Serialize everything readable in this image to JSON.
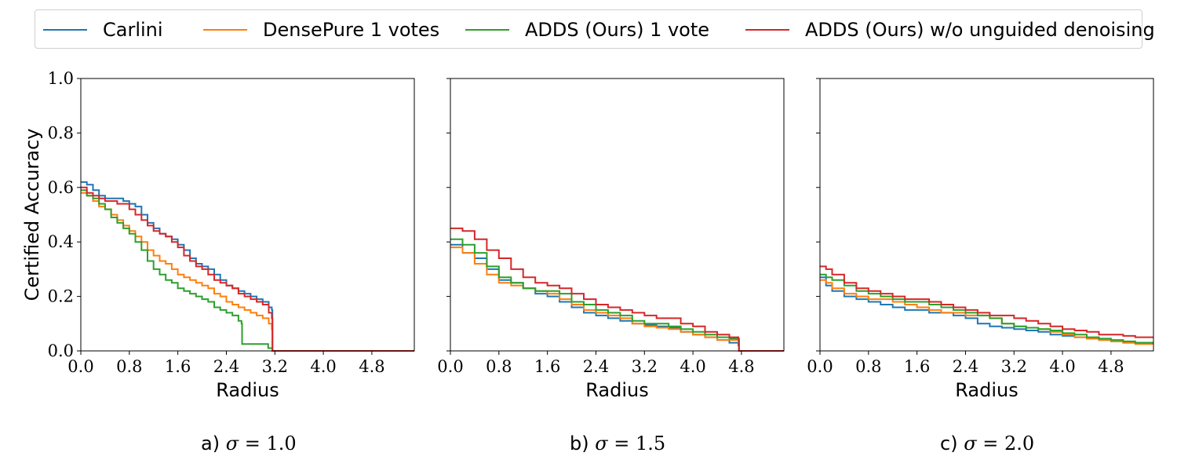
{
  "colors": {
    "carlini": "#1f77b4",
    "densepure": "#ff7f0e",
    "adds": "#2ca02c",
    "adds_wo": "#d62728"
  },
  "legend": {
    "placement": "top-center",
    "items": [
      {
        "label": "Carlini",
        "color": "#1f77b4"
      },
      {
        "label": "DensePure 1 votes",
        "color": "#ff7f0e"
      },
      {
        "label": "ADDS (Ours) 1 vote",
        "color": "#2ca02c"
      },
      {
        "label": "ADDS (Ours) w/o unguided denoising",
        "color": "#d62728"
      }
    ]
  },
  "captions": [
    {
      "prefix": "a)",
      "symbol": "σ",
      "eq": "=",
      "value": "1.0"
    },
    {
      "prefix": "b)",
      "symbol": "σ",
      "eq": "=",
      "value": "1.5"
    },
    {
      "prefix": "c)",
      "symbol": "σ",
      "eq": "=",
      "value": "2.0"
    }
  ],
  "chart_data": [
    {
      "type": "line",
      "xlabel": "Radius",
      "ylabel": "Certified Accuracy",
      "xlim": [
        0,
        5.5
      ],
      "ylim": [
        0,
        1.0
      ],
      "xticks": [
        "0.0",
        "0.8",
        "1.6",
        "2.4",
        "3.2",
        "4.0",
        "4.8"
      ],
      "yticks": [
        "0.0",
        "0.2",
        "0.4",
        "0.6",
        "0.8",
        "1.0"
      ],
      "grid": false,
      "series": [
        {
          "name": "Carlini",
          "x": [
            0,
            0.1,
            0.2,
            0.3,
            0.4,
            0.5,
            0.6,
            0.7,
            0.8,
            0.9,
            1.0,
            1.1,
            1.2,
            1.3,
            1.4,
            1.5,
            1.6,
            1.7,
            1.8,
            1.9,
            2.0,
            2.1,
            2.2,
            2.3,
            2.4,
            2.5,
            2.6,
            2.7,
            2.8,
            2.9,
            3.0,
            3.1,
            3.15,
            3.16,
            5.5
          ],
          "y": [
            0.62,
            0.61,
            0.59,
            0.57,
            0.56,
            0.56,
            0.56,
            0.55,
            0.54,
            0.53,
            0.5,
            0.47,
            0.45,
            0.43,
            0.42,
            0.41,
            0.39,
            0.37,
            0.34,
            0.32,
            0.31,
            0.3,
            0.28,
            0.26,
            0.24,
            0.23,
            0.22,
            0.21,
            0.2,
            0.19,
            0.18,
            0.16,
            0.15,
            0.0,
            0.0
          ]
        },
        {
          "name": "DensePure 1 votes",
          "x": [
            0,
            0.1,
            0.2,
            0.3,
            0.4,
            0.5,
            0.6,
            0.7,
            0.8,
            0.9,
            1.0,
            1.1,
            1.2,
            1.3,
            1.4,
            1.5,
            1.6,
            1.7,
            1.8,
            1.9,
            2.0,
            2.1,
            2.2,
            2.3,
            2.4,
            2.5,
            2.6,
            2.7,
            2.8,
            2.9,
            3.0,
            3.1,
            3.15,
            3.16,
            5.5
          ],
          "y": [
            0.58,
            0.57,
            0.55,
            0.53,
            0.52,
            0.5,
            0.48,
            0.46,
            0.44,
            0.42,
            0.4,
            0.37,
            0.35,
            0.33,
            0.32,
            0.3,
            0.28,
            0.27,
            0.26,
            0.25,
            0.24,
            0.23,
            0.21,
            0.2,
            0.18,
            0.17,
            0.16,
            0.15,
            0.14,
            0.13,
            0.12,
            0.1,
            0.08,
            0.0,
            0.0
          ]
        },
        {
          "name": "ADDS (Ours) 1 vote",
          "x": [
            0,
            0.1,
            0.2,
            0.3,
            0.4,
            0.5,
            0.6,
            0.7,
            0.8,
            0.9,
            1.0,
            1.1,
            1.2,
            1.3,
            1.4,
            1.5,
            1.6,
            1.7,
            1.8,
            1.9,
            2.0,
            2.1,
            2.2,
            2.3,
            2.4,
            2.5,
            2.6,
            2.65,
            2.66,
            2.9,
            3.0,
            3.08,
            3.09,
            3.15,
            3.16,
            5.5
          ],
          "y": [
            0.59,
            0.57,
            0.56,
            0.54,
            0.52,
            0.49,
            0.47,
            0.45,
            0.43,
            0.4,
            0.37,
            0.33,
            0.3,
            0.28,
            0.26,
            0.25,
            0.23,
            0.22,
            0.21,
            0.2,
            0.19,
            0.18,
            0.16,
            0.15,
            0.14,
            0.13,
            0.11,
            0.1,
            0.025,
            0.025,
            0.025,
            0.025,
            0.01,
            0.01,
            0.0,
            0.0
          ]
        },
        {
          "name": "ADDS (Ours) w/o unguided denoising",
          "x": [
            0,
            0.1,
            0.2,
            0.3,
            0.4,
            0.5,
            0.6,
            0.7,
            0.8,
            0.9,
            1.0,
            1.1,
            1.2,
            1.3,
            1.4,
            1.5,
            1.6,
            1.7,
            1.8,
            1.9,
            2.0,
            2.1,
            2.2,
            2.3,
            2.4,
            2.5,
            2.6,
            2.7,
            2.8,
            2.9,
            3.0,
            3.1,
            3.15,
            3.16,
            5.5
          ],
          "y": [
            0.6,
            0.58,
            0.57,
            0.56,
            0.55,
            0.55,
            0.54,
            0.54,
            0.52,
            0.5,
            0.48,
            0.46,
            0.44,
            0.43,
            0.42,
            0.4,
            0.38,
            0.35,
            0.33,
            0.31,
            0.3,
            0.28,
            0.26,
            0.25,
            0.24,
            0.23,
            0.21,
            0.2,
            0.19,
            0.18,
            0.17,
            0.14,
            0.12,
            0.0,
            0.0
          ]
        }
      ]
    },
    {
      "type": "line",
      "xlabel": "Radius",
      "ylabel": "",
      "xlim": [
        0,
        5.5
      ],
      "ylim": [
        0,
        1.0
      ],
      "xticks": [
        "0.0",
        "0.8",
        "1.6",
        "2.4",
        "3.2",
        "4.0",
        "4.8"
      ],
      "yticks": [],
      "grid": false,
      "series": [
        {
          "name": "Carlini",
          "x": [
            0,
            0.2,
            0.4,
            0.6,
            0.8,
            1.0,
            1.2,
            1.4,
            1.6,
            1.8,
            2.0,
            2.2,
            2.4,
            2.6,
            2.8,
            3.0,
            3.2,
            3.4,
            3.6,
            3.8,
            4.0,
            4.2,
            4.4,
            4.6,
            4.75,
            4.76,
            5.5
          ],
          "y": [
            0.39,
            0.36,
            0.34,
            0.3,
            0.26,
            0.25,
            0.23,
            0.21,
            0.2,
            0.18,
            0.16,
            0.14,
            0.13,
            0.12,
            0.11,
            0.1,
            0.095,
            0.09,
            0.085,
            0.07,
            0.06,
            0.05,
            0.04,
            0.03,
            0.02,
            0.0,
            0.0
          ]
        },
        {
          "name": "DensePure 1 votes",
          "x": [
            0,
            0.2,
            0.4,
            0.6,
            0.8,
            1.0,
            1.2,
            1.4,
            1.6,
            1.8,
            2.0,
            2.2,
            2.4,
            2.6,
            2.8,
            3.0,
            3.2,
            3.4,
            3.6,
            3.8,
            4.0,
            4.2,
            4.4,
            4.6,
            4.75,
            4.76,
            5.5
          ],
          "y": [
            0.38,
            0.36,
            0.32,
            0.28,
            0.25,
            0.24,
            0.23,
            0.22,
            0.21,
            0.19,
            0.17,
            0.15,
            0.14,
            0.13,
            0.12,
            0.1,
            0.09,
            0.085,
            0.08,
            0.07,
            0.06,
            0.05,
            0.04,
            0.04,
            0.035,
            0.0,
            0.0
          ]
        },
        {
          "name": "ADDS (Ours) 1 vote",
          "x": [
            0,
            0.2,
            0.4,
            0.6,
            0.8,
            1.0,
            1.2,
            1.4,
            1.6,
            1.8,
            2.0,
            2.2,
            2.4,
            2.6,
            2.8,
            3.0,
            3.2,
            3.4,
            3.6,
            3.8,
            4.0,
            4.2,
            4.4,
            4.6,
            4.75,
            4.76,
            5.5
          ],
          "y": [
            0.41,
            0.39,
            0.36,
            0.31,
            0.27,
            0.25,
            0.23,
            0.22,
            0.22,
            0.21,
            0.18,
            0.17,
            0.15,
            0.14,
            0.13,
            0.11,
            0.1,
            0.1,
            0.09,
            0.08,
            0.07,
            0.06,
            0.05,
            0.045,
            0.04,
            0.0,
            0.0
          ]
        },
        {
          "name": "ADDS (Ours) w/o unguided denoising",
          "x": [
            0,
            0.2,
            0.4,
            0.6,
            0.8,
            1.0,
            1.2,
            1.4,
            1.6,
            1.8,
            2.0,
            2.2,
            2.4,
            2.6,
            2.8,
            3.0,
            3.2,
            3.4,
            3.6,
            3.8,
            4.0,
            4.2,
            4.4,
            4.6,
            4.75,
            4.76,
            5.5
          ],
          "y": [
            0.45,
            0.44,
            0.41,
            0.37,
            0.34,
            0.3,
            0.27,
            0.25,
            0.24,
            0.23,
            0.21,
            0.19,
            0.17,
            0.16,
            0.15,
            0.14,
            0.13,
            0.12,
            0.12,
            0.1,
            0.09,
            0.07,
            0.06,
            0.05,
            0.045,
            0.0,
            0.0
          ]
        }
      ]
    },
    {
      "type": "line",
      "xlabel": "Radius",
      "ylabel": "",
      "xlim": [
        0,
        5.5
      ],
      "ylim": [
        0,
        1.0
      ],
      "xticks": [
        "0.0",
        "0.8",
        "1.6",
        "2.4",
        "3.2",
        "4.0",
        "4.8"
      ],
      "yticks": [],
      "grid": false,
      "series": [
        {
          "name": "Carlini",
          "x": [
            0,
            0.1,
            0.2,
            0.4,
            0.6,
            0.8,
            1.0,
            1.2,
            1.4,
            1.6,
            1.8,
            2.0,
            2.2,
            2.4,
            2.6,
            2.8,
            3.0,
            3.2,
            3.4,
            3.6,
            3.8,
            4.0,
            4.2,
            4.4,
            4.6,
            4.8,
            5.0,
            5.2,
            5.5
          ],
          "y": [
            0.27,
            0.24,
            0.22,
            0.2,
            0.19,
            0.18,
            0.17,
            0.16,
            0.15,
            0.15,
            0.14,
            0.14,
            0.13,
            0.12,
            0.1,
            0.09,
            0.085,
            0.08,
            0.075,
            0.07,
            0.06,
            0.055,
            0.05,
            0.045,
            0.04,
            0.035,
            0.03,
            0.03,
            0.03
          ]
        },
        {
          "name": "DensePure 1 votes",
          "x": [
            0,
            0.1,
            0.2,
            0.4,
            0.6,
            0.8,
            1.0,
            1.2,
            1.4,
            1.6,
            1.8,
            2.0,
            2.2,
            2.4,
            2.6,
            2.8,
            3.0,
            3.2,
            3.4,
            3.6,
            3.8,
            4.0,
            4.2,
            4.4,
            4.6,
            4.8,
            5.0,
            5.2,
            5.5
          ],
          "y": [
            0.26,
            0.25,
            0.23,
            0.21,
            0.2,
            0.19,
            0.19,
            0.18,
            0.17,
            0.16,
            0.15,
            0.14,
            0.14,
            0.13,
            0.13,
            0.12,
            0.1,
            0.09,
            0.085,
            0.08,
            0.07,
            0.06,
            0.05,
            0.045,
            0.04,
            0.035,
            0.03,
            0.025,
            0.025
          ]
        },
        {
          "name": "ADDS (Ours) 1 vote",
          "x": [
            0,
            0.1,
            0.2,
            0.4,
            0.6,
            0.8,
            1.0,
            1.2,
            1.4,
            1.6,
            1.8,
            2.0,
            2.2,
            2.4,
            2.6,
            2.8,
            3.0,
            3.2,
            3.4,
            3.6,
            3.8,
            4.0,
            4.2,
            4.4,
            4.6,
            4.8,
            5.0,
            5.2,
            5.5
          ],
          "y": [
            0.28,
            0.27,
            0.26,
            0.24,
            0.22,
            0.21,
            0.2,
            0.19,
            0.18,
            0.18,
            0.17,
            0.16,
            0.15,
            0.14,
            0.13,
            0.12,
            0.1,
            0.09,
            0.085,
            0.08,
            0.075,
            0.065,
            0.06,
            0.05,
            0.045,
            0.04,
            0.035,
            0.03,
            0.03
          ]
        },
        {
          "name": "ADDS (Ours) w/o unguided denoising",
          "x": [
            0,
            0.1,
            0.2,
            0.4,
            0.6,
            0.8,
            1.0,
            1.2,
            1.4,
            1.6,
            1.8,
            2.0,
            2.2,
            2.4,
            2.6,
            2.8,
            3.0,
            3.2,
            3.4,
            3.6,
            3.8,
            4.0,
            4.2,
            4.4,
            4.6,
            4.8,
            5.0,
            5.2,
            5.5
          ],
          "y": [
            0.31,
            0.3,
            0.28,
            0.25,
            0.23,
            0.22,
            0.21,
            0.2,
            0.19,
            0.19,
            0.18,
            0.17,
            0.16,
            0.15,
            0.14,
            0.13,
            0.13,
            0.12,
            0.11,
            0.1,
            0.09,
            0.08,
            0.075,
            0.07,
            0.06,
            0.06,
            0.055,
            0.05,
            0.05
          ]
        }
      ]
    }
  ]
}
